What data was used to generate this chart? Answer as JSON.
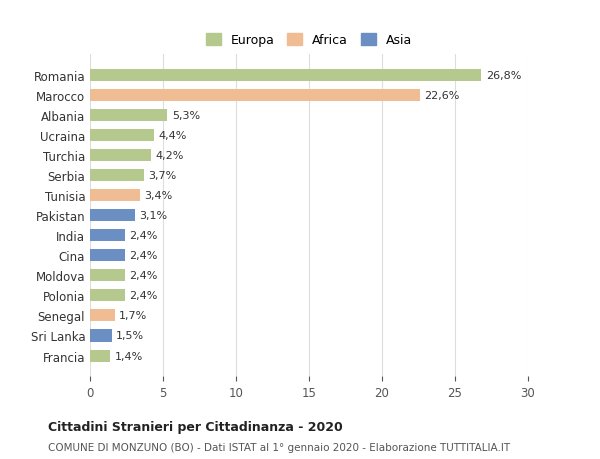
{
  "categories": [
    "Romania",
    "Marocco",
    "Albania",
    "Ucraina",
    "Turchia",
    "Serbia",
    "Tunisia",
    "Pakistan",
    "India",
    "Cina",
    "Moldova",
    "Polonia",
    "Senegal",
    "Sri Lanka",
    "Francia"
  ],
  "values": [
    26.8,
    22.6,
    5.3,
    4.4,
    4.2,
    3.7,
    3.4,
    3.1,
    2.4,
    2.4,
    2.4,
    2.4,
    1.7,
    1.5,
    1.4
  ],
  "labels": [
    "26,8%",
    "22,6%",
    "5,3%",
    "4,4%",
    "4,2%",
    "3,7%",
    "3,4%",
    "3,1%",
    "2,4%",
    "2,4%",
    "2,4%",
    "2,4%",
    "1,7%",
    "1,5%",
    "1,4%"
  ],
  "continents": [
    "Europa",
    "Africa",
    "Europa",
    "Europa",
    "Europa",
    "Europa",
    "Africa",
    "Asia",
    "Asia",
    "Asia",
    "Europa",
    "Europa",
    "Africa",
    "Asia",
    "Europa"
  ],
  "colors": {
    "Europa": "#b5c98e",
    "Africa": "#f0bc94",
    "Asia": "#6b8fc2"
  },
  "legend_labels": [
    "Europa",
    "Africa",
    "Asia"
  ],
  "title": "Cittadini Stranieri per Cittadinanza - 2020",
  "subtitle": "COMUNE DI MONZUNO (BO) - Dati ISTAT al 1° gennaio 2020 - Elaborazione TUTTITALIA.IT",
  "xlim": [
    0,
    30
  ],
  "xticks": [
    0,
    5,
    10,
    15,
    20,
    25,
    30
  ],
  "background_color": "#ffffff",
  "bar_height": 0.6,
  "grid_color": "#dddddd"
}
